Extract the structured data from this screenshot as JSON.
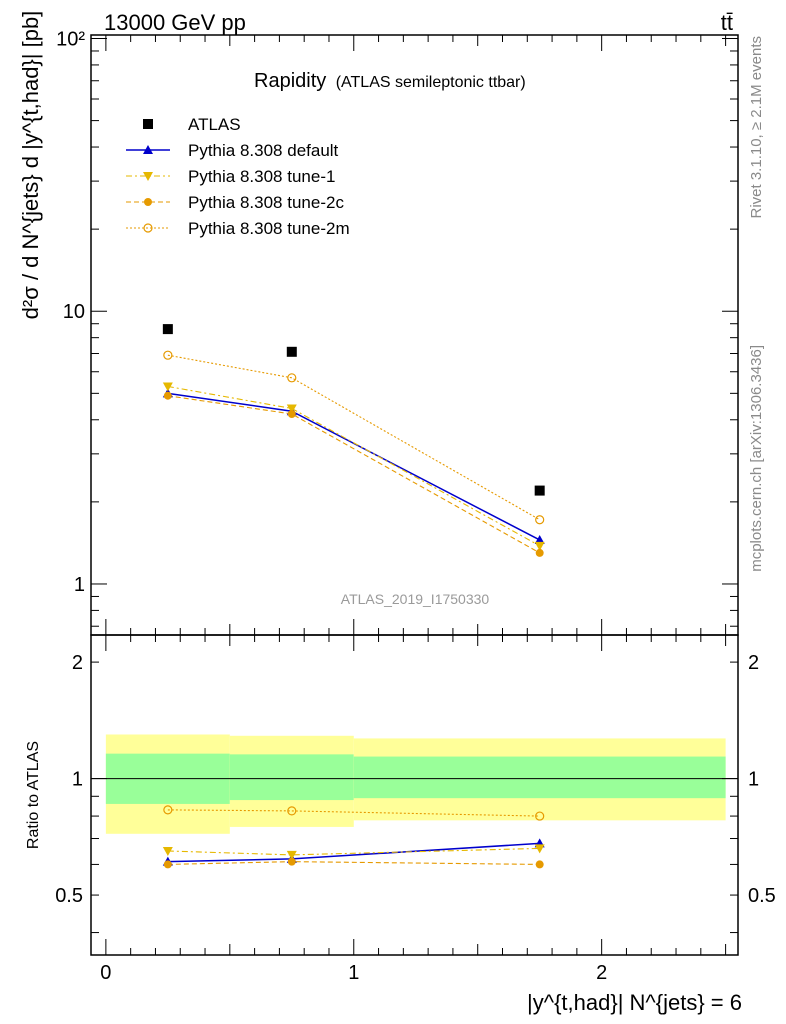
{
  "header": {
    "energy_label": "13000 GeV pp",
    "process_label": "tt̄"
  },
  "side_labels": {
    "rivet": "Rivet 3.1.10, ≥ 2.1M events",
    "mcplots": "mcplots.cern.ch [arXiv:1306.3436]"
  },
  "chart_data": {
    "type": "line",
    "title": "Rapidity",
    "subtitle": "(ATLAS semileptonic ttbar)",
    "analysis_id": "ATLAS_2019_I1750330",
    "xlabel": "|y^{t,had}| N^{jets} = 6",
    "ylabel": "d²σ / d N^{jets} d |y^{t,had}| [pb]",
    "ratio_ylabel": "Ratio to ATLAS",
    "xlim": [
      -0.06,
      2.55
    ],
    "ylim": [
      0.65,
      103
    ],
    "ylog": true,
    "ratio_ylim": [
      0.35,
      2.35
    ],
    "x_ticks": [
      "0",
      "1",
      "2"
    ],
    "y_ticks": [
      "1",
      "10",
      "10²"
    ],
    "ratio_ticks": [
      "0.5",
      "1",
      "2"
    ],
    "legend_position": "top-left",
    "x": [
      0.25,
      0.75,
      1.75
    ],
    "bins": [
      [
        0,
        0.5
      ],
      [
        0.5,
        1.0
      ],
      [
        1.0,
        2.5
      ]
    ],
    "data": {
      "name": "ATLAS",
      "values": [
        8.6,
        7.1,
        2.2
      ],
      "color": "#000000"
    },
    "series": [
      {
        "name": "Pythia 8.308 default",
        "values": [
          5.0,
          4.3,
          1.45
        ],
        "ratio": [
          0.61,
          0.62,
          0.68
        ],
        "color": "#0000cc",
        "marker": "triangle-up",
        "dash": "none"
      },
      {
        "name": "Pythia 8.308 tune-1",
        "values": [
          5.3,
          4.4,
          1.38
        ],
        "ratio": [
          0.65,
          0.635,
          0.66
        ],
        "color": "#e6b800",
        "marker": "triangle-down",
        "dash": "6,3,2,3"
      },
      {
        "name": "Pythia 8.308 tune-2c",
        "values": [
          4.9,
          4.2,
          1.3
        ],
        "ratio": [
          0.6,
          0.61,
          0.6
        ],
        "color": "#e69a00",
        "marker": "circle-filled",
        "dash": "5,3"
      },
      {
        "name": "Pythia 8.308 tune-2m",
        "values": [
          6.9,
          5.7,
          1.72
        ],
        "ratio": [
          0.83,
          0.825,
          0.8
        ],
        "color": "#e69a00",
        "marker": "circle-open",
        "dash": "2,2"
      }
    ],
    "uncertainty_bands": {
      "inner": [
        [
          0.86,
          1.16
        ],
        [
          0.88,
          1.155
        ],
        [
          0.89,
          1.14
        ]
      ],
      "outer": [
        [
          0.72,
          1.3
        ],
        [
          0.75,
          1.29
        ],
        [
          0.78,
          1.27
        ]
      ],
      "inner_color": "#99ff99",
      "outer_color": "#ffff99"
    }
  }
}
